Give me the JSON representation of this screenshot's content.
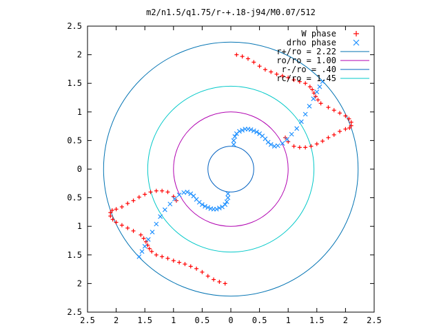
{
  "chart_data": {
    "type": "scatter",
    "title": "m2/n1.5/q1.75/r-+.18-j94/M0.07/512",
    "xlabel": "",
    "ylabel": "",
    "xlim": [
      -2.5,
      2.5
    ],
    "ylim": [
      -2.5,
      2.5
    ],
    "x_ticks": [
      -2.5,
      -2,
      -1.5,
      -1,
      -0.5,
      0,
      0.5,
      1,
      1.5,
      2,
      2.5
    ],
    "x_tick_labels": [
      "2.5",
      "2",
      "1.5",
      "1",
      "0.5",
      "0",
      "0.5",
      "1",
      "1.5",
      "2",
      "2.5"
    ],
    "y_ticks": [
      2.5,
      2,
      1.5,
      1,
      0.5,
      0,
      -0.5,
      -1,
      -1.5,
      -2,
      -2.5
    ],
    "y_tick_labels": [
      "2.5",
      "2",
      "1.5",
      "1",
      "0.5",
      "0",
      "0.5",
      "1",
      "1.5",
      "2",
      "2.5"
    ],
    "grid": false,
    "legend_position": "top-right",
    "series": [
      {
        "name": "W phase",
        "kind": "points",
        "marker": "+",
        "color": "#ff0000",
        "x": [
          0.95,
          1.0,
          1.1,
          1.2,
          1.3,
          1.4,
          1.5,
          1.6,
          1.7,
          1.8,
          1.9,
          2.0,
          2.07,
          2.1,
          2.1,
          2.06,
          2.0,
          1.9,
          1.8,
          1.7,
          1.57,
          1.52,
          1.48,
          1.45,
          1.42,
          1.38,
          1.3,
          1.2,
          1.1,
          1.0,
          0.9,
          0.8,
          0.7,
          0.6,
          0.5,
          0.4,
          0.3,
          0.2,
          0.1
        ],
        "y": [
          0.55,
          0.48,
          0.4,
          0.38,
          0.38,
          0.4,
          0.44,
          0.49,
          0.55,
          0.6,
          0.66,
          0.7,
          0.72,
          0.76,
          0.82,
          0.88,
          0.93,
          0.98,
          1.03,
          1.08,
          1.15,
          1.21,
          1.27,
          1.33,
          1.39,
          1.44,
          1.5,
          1.53,
          1.56,
          1.6,
          1.63,
          1.66,
          1.7,
          1.74,
          1.8,
          1.87,
          1.93,
          1.97,
          2.0
        ]
      },
      {
        "name": "drho phase",
        "kind": "points",
        "marker": "x",
        "color": "#1e90ff",
        "x": [
          0.05,
          0.05,
          0.07,
          0.1,
          0.15,
          0.2,
          0.25,
          0.3,
          0.35,
          0.4,
          0.45,
          0.5,
          0.55,
          0.6,
          0.65,
          0.7,
          0.76,
          0.82,
          0.9,
          0.98,
          1.06,
          1.15,
          1.23,
          1.3,
          1.37,
          1.44,
          1.5,
          1.55,
          1.6
        ],
        "y": [
          0.43,
          0.5,
          0.57,
          0.62,
          0.66,
          0.68,
          0.7,
          0.7,
          0.69,
          0.67,
          0.65,
          0.62,
          0.58,
          0.53,
          0.47,
          0.43,
          0.4,
          0.41,
          0.45,
          0.52,
          0.61,
          0.71,
          0.83,
          0.96,
          1.1,
          1.23,
          1.35,
          1.44,
          1.53
        ]
      }
    ],
    "circles": [
      {
        "name": "r+/ro = 2.22",
        "label": "r+/ro = 2.22",
        "radius": 2.22,
        "color": "#0072b2"
      },
      {
        "name": "ro/ro = 1.00",
        "label": "ro/ro = 1.00",
        "radius": 1.0,
        "color": "#b000b0"
      },
      {
        "name": "r-/ro = .40",
        "label": "r-/ro = .40",
        "radius": 0.4,
        "color": "#0060c0"
      },
      {
        "name": "rc/ro = 1.45",
        "label": "rc/ro = 1.45",
        "radius": 1.45,
        "color": "#00c8c8"
      }
    ],
    "symmetry": "point-symmetric (m=2): each spiral arm repeated rotated by 180 degrees"
  }
}
